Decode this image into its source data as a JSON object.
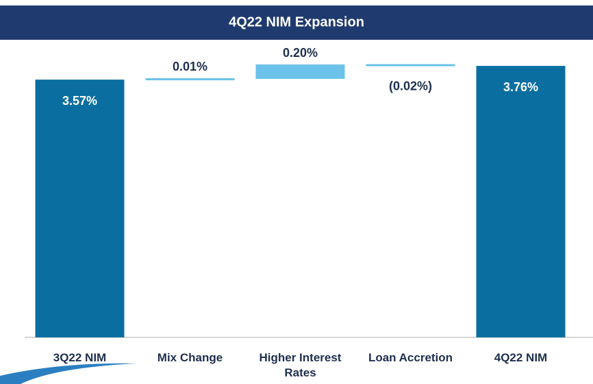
{
  "chart_data": {
    "type": "waterfall",
    "title": "4Q22 NIM Expansion",
    "categories": [
      "3Q22 NIM",
      "Mix Change",
      "Higher Interest Rates",
      "Loan Accretion",
      "4Q22 NIM"
    ],
    "values": [
      3.57,
      0.01,
      0.2,
      -0.02,
      3.76
    ],
    "value_labels": [
      "3.57%",
      "0.01%",
      "0.20%",
      "(0.02%)",
      "3.76%"
    ],
    "kinds": [
      "total",
      "delta",
      "delta",
      "delta",
      "total"
    ],
    "colors": {
      "total": "#0a6fa0",
      "delta": "#6cc2e8"
    }
  }
}
